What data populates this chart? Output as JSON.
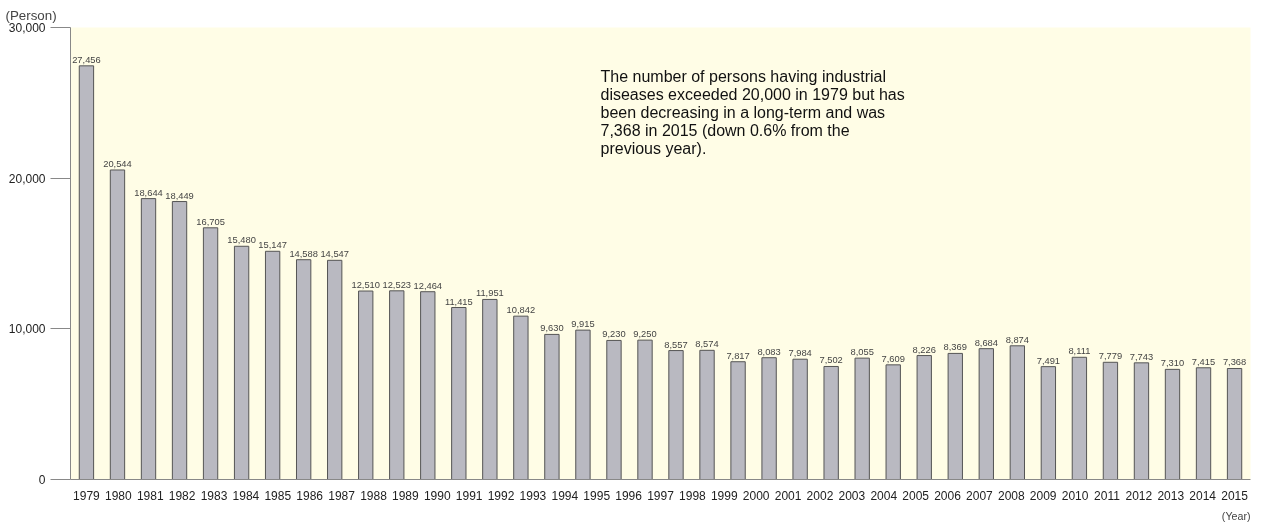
{
  "chart_data": {
    "type": "bar",
    "ylabel": "(Person)",
    "xlabel": "(Year)",
    "annotations": [
      "The number of persons having industrial diseases exceeded 20,000 in 1979 but has been decreasing in a long-term and was 7,368 in 2015 (down 0.6% from the previous year)."
    ],
    "x": [
      1979,
      1979.973,
      1980.946,
      1981.919,
      1982.892,
      1983.865,
      1984.838,
      1985.811,
      1986.784,
      1987.757,
      1988.73,
      1989.703,
      1990.676,
      1991.649,
      1992.622,
      1993.595,
      1994.568,
      1995.541,
      1996.514,
      1997.486,
      1998.459,
      1999.432,
      2000.405,
      2001.378,
      2002.351,
      2003.324,
      2004.297,
      2005.27,
      2006.243,
      2007.216,
      2008.189,
      2009.162,
      2010.135,
      2011.108,
      2012.081,
      2013.054,
      2014.027,
      2015
    ],
    "values": [
      27456,
      20544,
      18644,
      18449,
      16705,
      15480,
      15147,
      14588,
      14547,
      12510,
      12523,
      12464,
      11415,
      11951,
      10842,
      9630,
      9915,
      9230,
      9250,
      8557,
      8574,
      7817,
      8083,
      7984,
      7502,
      8055,
      7609,
      8226,
      8369,
      8684,
      8874,
      7491,
      8111,
      7779,
      7743,
      7310,
      7415,
      7368
    ],
    "value_labels": [
      "27,456",
      "20,544",
      "18,644",
      "18,449",
      "16,705",
      "15,480",
      "15,147",
      "14,588",
      "14,547",
      "12,510",
      "12,523",
      "12,464",
      "11,415",
      "11,951",
      "10,842",
      "9,630",
      "9,915",
      "9,230",
      "9,250",
      "8,557",
      "8,574",
      "7,817",
      "8,083",
      "7,984",
      "7,502",
      "8,055",
      "7,609",
      "8,226",
      "8,369",
      "8,684",
      "8,874",
      "7,491",
      "8,111",
      "7,779",
      "7,743",
      "7,310",
      "7,415",
      "7,368"
    ],
    "color": "#b9b9c1",
    "grid": false,
    "xlim": [
      1978.5,
      2015.5
    ],
    "xticks": [
      1979,
      1980,
      1981,
      1982,
      1983,
      1984,
      1985,
      1986,
      1987,
      1988,
      1989,
      1990,
      1991,
      1992,
      1993,
      1994,
      1995,
      1996,
      1997,
      1998,
      1999,
      2000,
      2001,
      2002,
      2003,
      2004,
      2005,
      2006,
      2007,
      2008,
      2009,
      2010,
      2011,
      2012,
      2013,
      2014,
      2015
    ],
    "ylim": [
      0,
      30000
    ],
    "yticks": [
      0,
      {
        "value": 10000,
        "label": "10,000"
      },
      {
        "value": 20000,
        "label": "20,000"
      },
      {
        "value": 30000,
        "label": "30,000"
      }
    ]
  }
}
